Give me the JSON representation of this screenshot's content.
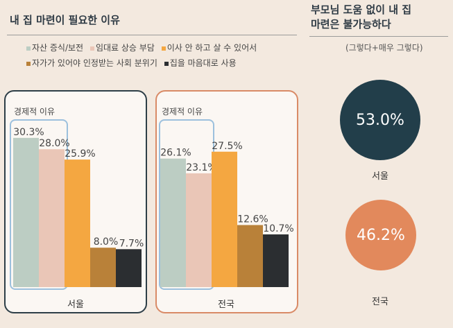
{
  "header": {
    "left_title": "내 집 마련이 필요한 이유",
    "right_title_line1": "부모님 도움 없이 내 집",
    "right_title_line2": "마련은 불가능하다",
    "right_note": "(그렇다+매우 그렇다)"
  },
  "legend": [
    {
      "label": "자산 증식/보전",
      "color": "#bccdc3"
    },
    {
      "label": "임대료 상승 부담",
      "color": "#eac6b7"
    },
    {
      "label": "이사 안 하고 살 수 있어서",
      "color": "#f4a741"
    },
    {
      "label": "자가가 있어야 인정받는 사회 분위기",
      "color": "#b98139"
    },
    {
      "label": "집을 마음대로 사용",
      "color": "#2b2e31"
    }
  ],
  "panels": {
    "seoul": {
      "econ_label": "경제적 이유",
      "region": "서울"
    },
    "nation": {
      "econ_label": "경제적 이유",
      "region": "전국"
    }
  },
  "circles": [
    {
      "value_label": "53.0%",
      "region": "서울",
      "value": 53.0,
      "color": "#223e4a"
    },
    {
      "value_label": "46.2%",
      "region": "전국",
      "value": 46.2,
      "color": "#e2895c"
    }
  ],
  "chart_data": [
    {
      "type": "bar",
      "categories": [
        "자산 증식/보전",
        "임대료 상승 부담",
        "이사 안 하고 살 수 있어서",
        "자가가 있어야 인정받는 사회 분위기",
        "집을 마음대로 사용"
      ],
      "values": [
        30.3,
        28.0,
        25.9,
        8.0,
        7.7
      ],
      "value_labels": [
        "30.3%",
        "28.0%",
        "25.9%",
        "8.0%",
        "7.7%"
      ],
      "colors": [
        "#bccdc3",
        "#eac6b7",
        "#f4a741",
        "#b98139",
        "#2b2e31"
      ],
      "xlabel": "서울",
      "ylim": [
        0,
        35
      ]
    },
    {
      "type": "bar",
      "categories": [
        "자산 증식/보전",
        "임대료 상승 부담",
        "이사 안 하고 살 수 있어서",
        "자가가 있어야 인정받는 사회 분위기",
        "집을 마음대로 사용"
      ],
      "values": [
        26.1,
        23.1,
        27.5,
        12.6,
        10.7
      ],
      "value_labels": [
        "26.1%",
        "23.1%",
        "27.5%",
        "12.6%",
        "10.7%"
      ],
      "colors": [
        "#bccdc3",
        "#eac6b7",
        "#f4a741",
        "#b98139",
        "#2b2e31"
      ],
      "xlabel": "전국",
      "ylim": [
        0,
        35
      ]
    }
  ]
}
